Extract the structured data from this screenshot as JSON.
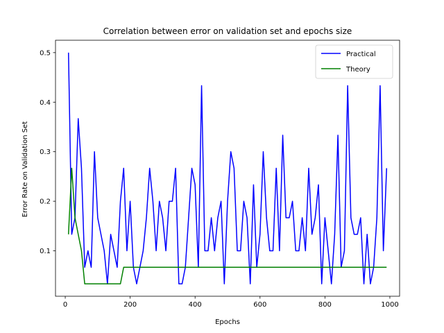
{
  "chart_data": {
    "type": "line",
    "title": "Correlation between error on validation set and epochs size",
    "xlabel": "Epochs",
    "ylabel": "Error Rate on Validation Set",
    "xlim": [
      -30,
      1030
    ],
    "ylim": [
      0.0083,
      0.525
    ],
    "xticks": [
      0,
      200,
      400,
      600,
      800,
      1000
    ],
    "yticks": [
      0.1,
      0.2,
      0.3,
      0.4,
      0.5
    ],
    "grid": false,
    "legend_position": "top-right",
    "series": [
      {
        "name": "Practical",
        "color": "#0000ff",
        "x": [
          10,
          20,
          30,
          40,
          50,
          60,
          70,
          80,
          90,
          100,
          110,
          120,
          130,
          140,
          150,
          160,
          170,
          180,
          190,
          200,
          210,
          220,
          230,
          240,
          250,
          260,
          270,
          280,
          290,
          300,
          310,
          320,
          330,
          340,
          350,
          360,
          370,
          380,
          390,
          400,
          410,
          420,
          430,
          440,
          450,
          460,
          470,
          480,
          490,
          500,
          510,
          520,
          530,
          540,
          550,
          560,
          570,
          580,
          590,
          600,
          610,
          620,
          630,
          640,
          650,
          660,
          670,
          680,
          690,
          700,
          710,
          720,
          730,
          740,
          750,
          760,
          770,
          780,
          790,
          800,
          810,
          820,
          830,
          840,
          850,
          860,
          870,
          880,
          890,
          900,
          910,
          920,
          930,
          940,
          950,
          960,
          970,
          980,
          990
        ],
        "y": [
          0.5,
          0.1333,
          0.1667,
          0.3667,
          0.2667,
          0.0667,
          0.1,
          0.0667,
          0.3,
          0.1667,
          0.1333,
          0.1,
          0.0333,
          0.1333,
          0.1,
          0.0667,
          0.2,
          0.2667,
          0.1,
          0.2,
          0.0667,
          0.0333,
          0.0667,
          0.1,
          0.1667,
          0.2667,
          0.2,
          0.1,
          0.2,
          0.1667,
          0.1,
          0.2,
          0.2,
          0.2667,
          0.0333,
          0.0333,
          0.0667,
          0.1667,
          0.2667,
          0.2333,
          0.0667,
          0.4333,
          0.1,
          0.1,
          0.1667,
          0.1,
          0.1667,
          0.2,
          0.0333,
          0.2,
          0.3,
          0.2667,
          0.1,
          0.1,
          0.2,
          0.1667,
          0.0333,
          0.2333,
          0.0667,
          0.1333,
          0.3,
          0.1667,
          0.1,
          0.1,
          0.2667,
          0.1,
          0.3333,
          0.1667,
          0.1667,
          0.2,
          0.1,
          0.1,
          0.1667,
          0.1,
          0.2667,
          0.1333,
          0.1667,
          0.2333,
          0.0333,
          0.1667,
          0.1,
          0.0333,
          0.1333,
          0.3333,
          0.0667,
          0.1,
          0.4333,
          0.1667,
          0.1333,
          0.1333,
          0.1667,
          0.0333,
          0.1333,
          0.0333,
          0.0667,
          0.1667,
          0.4333,
          0.1,
          0.2667
        ]
      },
      {
        "name": "Theory",
        "color": "#008000",
        "x": [
          10,
          20,
          30,
          40,
          50,
          60,
          70,
          80,
          90,
          100,
          110,
          120,
          130,
          140,
          150,
          160,
          170,
          180,
          190,
          200,
          300,
          400,
          500,
          600,
          700,
          800,
          900,
          990
        ],
        "y": [
          0.1333,
          0.2667,
          0.1667,
          0.1333,
          0.1,
          0.0333,
          0.0333,
          0.0333,
          0.0333,
          0.0333,
          0.0333,
          0.0333,
          0.0333,
          0.0333,
          0.0333,
          0.0333,
          0.0333,
          0.0667,
          0.0667,
          0.0667,
          0.0667,
          0.0667,
          0.0667,
          0.0667,
          0.0667,
          0.0667,
          0.0667,
          0.0667
        ]
      }
    ]
  }
}
